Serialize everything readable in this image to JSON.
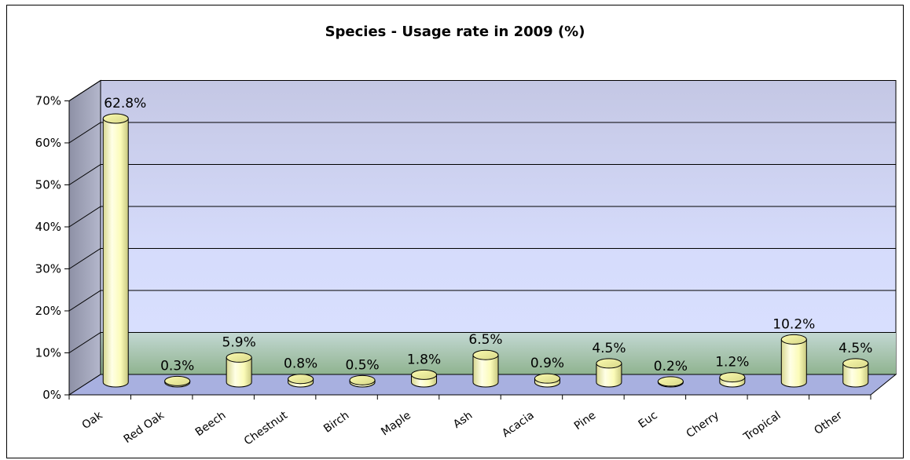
{
  "chart_data": {
    "type": "bar",
    "title": "Species - Usage rate in 2009 (%)",
    "xlabel": "",
    "ylabel": "",
    "ylim": [
      0,
      70
    ],
    "yticks": [
      "0%",
      "10%",
      "20%",
      "30%",
      "40%",
      "50%",
      "60%",
      "70%"
    ],
    "categories": [
      "Oak",
      "Red Oak",
      "Beech",
      "Chestnut",
      "Birch",
      "Maple",
      "Ash",
      "Acacia",
      "Pine",
      "Euc",
      "Cherry",
      "Tropical",
      "Other"
    ],
    "values": [
      62.8,
      0.3,
      5.9,
      0.8,
      0.5,
      1.8,
      6.5,
      0.9,
      4.5,
      0.2,
      1.2,
      10.2,
      4.5
    ],
    "data_labels": [
      "62.8%",
      "0.3%",
      "5.9%",
      "0.8%",
      "0.5%",
      "1.8%",
      "6.5%",
      "0.9%",
      "4.5%",
      "0.2%",
      "1.2%",
      "10.2%",
      "4.5%"
    ],
    "grid": true,
    "legend": "none",
    "style": "3d-cylinder",
    "colors": {
      "bar": "#ffffc0",
      "bar_top": "#f2f2a0",
      "back_wall_top": "#c8cbe6",
      "back_wall_bottom": "#d8e0ff",
      "band_low": "#a9c9a9",
      "side_wall": "#a0a3b8",
      "floor": "#a8b0e0"
    }
  }
}
